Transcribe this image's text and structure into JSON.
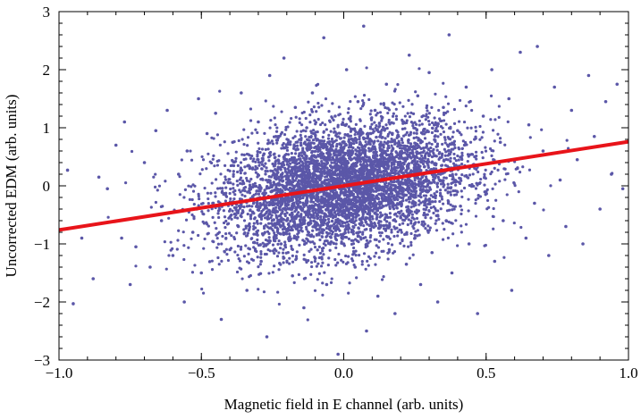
{
  "chart_data": {
    "type": "scatter",
    "title": "",
    "xlabel": "Magnetic field in E channel (arb. units)",
    "ylabel": "Uncorrected EDM (arb. units)",
    "xlim": [
      -1.0,
      1.0
    ],
    "ylim": [
      -3,
      3
    ],
    "x_ticks": [
      -1.0,
      -0.5,
      0.0,
      0.5,
      1.0
    ],
    "x_tick_labels": [
      "−1.0",
      "−0.5",
      "0.0",
      "0.5",
      "1.0"
    ],
    "y_ticks": [
      -3,
      -2,
      -1,
      0,
      1,
      2,
      3
    ],
    "y_tick_labels": [
      "−3",
      "−2",
      "−1",
      "0",
      "1",
      "2",
      "3"
    ],
    "grid": false,
    "legend": "none",
    "point_color": "#5b57a8",
    "fit_line_color": "#e8141a",
    "fit_line": {
      "x": [
        -1.0,
        1.0
      ],
      "y": [
        -0.76,
        0.76
      ]
    },
    "series": [
      {
        "values_note_free": true,
        "points": [
          [
            -0.97,
            0.27
          ],
          [
            -0.95,
            -2.03
          ],
          [
            -0.92,
            -0.9
          ],
          [
            -0.88,
            -1.6
          ],
          [
            -0.86,
            0.15
          ],
          [
            -0.83,
            -0.05
          ],
          [
            -0.8,
            0.7
          ],
          [
            -0.78,
            -0.9
          ],
          [
            -0.77,
            1.1
          ],
          [
            -0.75,
            -1.7
          ],
          [
            -0.73,
            -1.05
          ],
          [
            -0.7,
            0.4
          ],
          [
            -0.68,
            -1.4
          ],
          [
            -0.66,
            0.95
          ],
          [
            -0.64,
            -0.6
          ],
          [
            -0.62,
            1.3
          ],
          [
            -0.6,
            -1.2
          ],
          [
            -0.58,
            0.2
          ],
          [
            -0.56,
            -2.0
          ],
          [
            -0.55,
            0.6
          ],
          [
            -0.53,
            -0.8
          ],
          [
            -0.51,
            1.5
          ],
          [
            -0.5,
            -1.5
          ],
          [
            -0.48,
            0.9
          ],
          [
            -0.46,
            -0.3
          ],
          [
            -0.45,
            1.25
          ],
          [
            -0.43,
            -2.3
          ],
          [
            -0.42,
            0.05
          ],
          [
            -0.4,
            -1.1
          ],
          [
            -0.39,
            0.75
          ],
          [
            -0.37,
            -0.7
          ],
          [
            -0.36,
            1.6
          ],
          [
            -0.34,
            -1.8
          ],
          [
            -0.33,
            0.3
          ],
          [
            -0.32,
            -0.45
          ],
          [
            -0.3,
            1.1
          ],
          [
            -0.29,
            -1.3
          ],
          [
            -0.28,
            0.55
          ],
          [
            -0.27,
            -2.6
          ],
          [
            -0.26,
            1.9
          ],
          [
            -0.24,
            -0.2
          ],
          [
            -0.23,
            0.85
          ],
          [
            -0.22,
            -1.0
          ],
          [
            -0.21,
            2.2
          ],
          [
            -0.2,
            -0.6
          ],
          [
            -0.19,
            0.45
          ],
          [
            -0.18,
            -1.55
          ],
          [
            -0.17,
            1.35
          ],
          [
            -0.16,
            -0.1
          ],
          [
            -0.15,
            0.7
          ],
          [
            -0.14,
            -2.1
          ],
          [
            -0.13,
            1.0
          ],
          [
            -0.12,
            -0.35
          ],
          [
            -0.11,
            1.6
          ],
          [
            -0.1,
            -1.25
          ],
          [
            -0.09,
            0.25
          ],
          [
            -0.08,
            -0.8
          ],
          [
            -0.07,
            2.55
          ],
          [
            -0.06,
            -1.7
          ],
          [
            -0.05,
            0.5
          ],
          [
            -0.04,
            -0.5
          ],
          [
            -0.03,
            1.2
          ],
          [
            -0.02,
            -2.9
          ],
          [
            -0.01,
            0.1
          ],
          [
            0.0,
            -1.0
          ],
          [
            0.01,
            2.0
          ],
          [
            0.02,
            -0.3
          ],
          [
            0.03,
            0.8
          ],
          [
            0.04,
            -1.4
          ],
          [
            0.05,
            1.45
          ],
          [
            0.06,
            -0.05
          ],
          [
            0.07,
            2.75
          ],
          [
            0.08,
            -2.5
          ],
          [
            0.09,
            0.6
          ],
          [
            0.1,
            -0.7
          ],
          [
            0.11,
            1.3
          ],
          [
            0.12,
            -1.9
          ],
          [
            0.13,
            0.35
          ],
          [
            0.14,
            -0.15
          ],
          [
            0.15,
            1.75
          ],
          [
            0.16,
            -1.1
          ],
          [
            0.17,
            0.9
          ],
          [
            0.18,
            -2.2
          ],
          [
            0.19,
            0.15
          ],
          [
            0.2,
            -0.55
          ],
          [
            0.21,
            1.1
          ],
          [
            0.22,
            -1.35
          ],
          [
            0.23,
            2.25
          ],
          [
            0.24,
            0.4
          ],
          [
            0.25,
            -0.9
          ],
          [
            0.26,
            1.55
          ],
          [
            0.27,
            -1.7
          ],
          [
            0.28,
            0.65
          ],
          [
            0.29,
            -0.25
          ],
          [
            0.3,
            1.95
          ],
          [
            0.31,
            -1.15
          ],
          [
            0.32,
            0.85
          ],
          [
            0.33,
            -2.0
          ],
          [
            0.34,
            0.2
          ],
          [
            0.35,
            1.35
          ],
          [
            0.36,
            -0.6
          ],
          [
            0.37,
            2.6
          ],
          [
            0.38,
            -1.5
          ],
          [
            0.4,
            0.95
          ],
          [
            0.41,
            -0.35
          ],
          [
            0.43,
            1.7
          ],
          [
            0.44,
            -1.0
          ],
          [
            0.46,
            0.5
          ],
          [
            0.47,
            -2.2
          ],
          [
            0.49,
            1.2
          ],
          [
            0.5,
            -0.1
          ],
          [
            0.52,
            2.0
          ],
          [
            0.53,
            -1.3
          ],
          [
            0.55,
            0.75
          ],
          [
            0.56,
            -0.6
          ],
          [
            0.58,
            1.5
          ],
          [
            0.59,
            -1.8
          ],
          [
            0.61,
            0.3
          ],
          [
            0.62,
            2.3
          ],
          [
            0.64,
            -0.9
          ],
          [
            0.65,
            1.05
          ],
          [
            0.67,
            -0.3
          ],
          [
            0.68,
            2.4
          ],
          [
            0.7,
            0.6
          ],
          [
            0.72,
            -1.2
          ],
          [
            0.74,
            1.7
          ],
          [
            0.76,
            0.1
          ],
          [
            0.78,
            -0.7
          ],
          [
            0.8,
            1.3
          ],
          [
            0.82,
            0.45
          ],
          [
            0.84,
            -1.0
          ],
          [
            0.86,
            1.9
          ],
          [
            0.88,
            0.85
          ],
          [
            0.9,
            -0.4
          ],
          [
            0.92,
            1.45
          ],
          [
            0.94,
            0.2
          ],
          [
            0.96,
            1.75
          ],
          [
            0.98,
            -0.05
          ]
        ]
      }
    ]
  }
}
